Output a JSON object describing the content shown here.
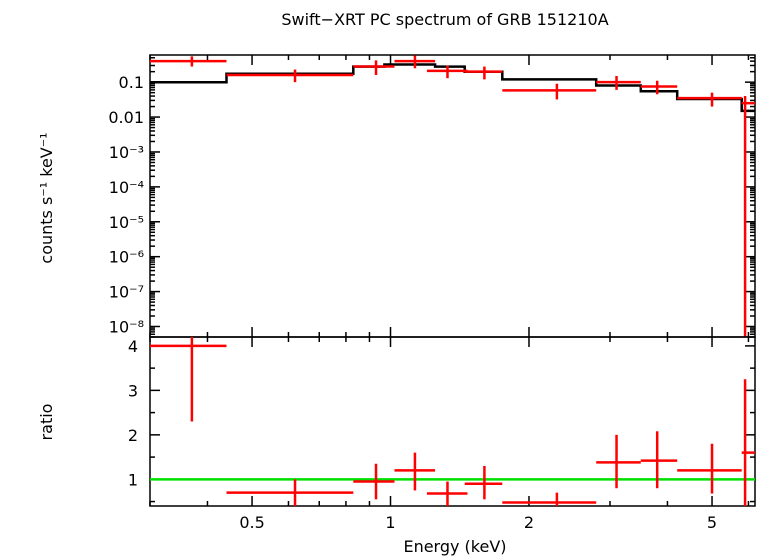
{
  "chart_data": {
    "type": "line",
    "title": "Swift−XRT PC spectrum of GRB 151210A",
    "xlabel": "Energy (keV)",
    "xscale": "log",
    "xlim": [
      0.3,
      6.2
    ],
    "x_ticks": [
      {
        "value": 0.5,
        "label": "0.5"
      },
      {
        "value": 1,
        "label": "1"
      },
      {
        "value": 2,
        "label": "2"
      },
      {
        "value": 5,
        "label": "5"
      }
    ],
    "colors": {
      "data": "#ff0000",
      "model": "#000000",
      "unity": "#00e000"
    },
    "top_panel": {
      "ylabel": "counts s⁻¹ keV⁻¹",
      "yscale": "log",
      "ylim": [
        5e-09,
        0.6
      ],
      "y_ticks": [
        {
          "value": 0.1,
          "label": "0.1"
        },
        {
          "value": 0.01,
          "label": "0.01"
        },
        {
          "value": 0.001,
          "label": "10⁻³"
        },
        {
          "value": 0.0001,
          "label": "10⁻⁴"
        },
        {
          "value": 1e-05,
          "label": "10⁻⁵"
        },
        {
          "value": 1e-06,
          "label": "10⁻⁶"
        },
        {
          "value": 1e-07,
          "label": "10⁻⁷"
        },
        {
          "value": 1e-08,
          "label": "10⁻⁸"
        }
      ],
      "model": [
        {
          "x_lo": 0.3,
          "x_hi": 0.44,
          "y": 0.1
        },
        {
          "x_lo": 0.44,
          "x_hi": 0.83,
          "y": 0.175
        },
        {
          "x_lo": 0.83,
          "x_hi": 0.97,
          "y": 0.28
        },
        {
          "x_lo": 0.97,
          "x_hi": 1.25,
          "y": 0.32
        },
        {
          "x_lo": 1.25,
          "x_hi": 1.45,
          "y": 0.28
        },
        {
          "x_lo": 1.45,
          "x_hi": 1.75,
          "y": 0.2
        },
        {
          "x_lo": 1.75,
          "x_hi": 2.8,
          "y": 0.12
        },
        {
          "x_lo": 2.8,
          "x_hi": 3.5,
          "y": 0.08
        },
        {
          "x_lo": 3.5,
          "x_hi": 4.2,
          "y": 0.055
        },
        {
          "x_lo": 4.2,
          "x_hi": 5.8,
          "y": 0.033
        },
        {
          "x_lo": 5.8,
          "x_hi": 6.2,
          "y": 0.015
        }
      ],
      "points": [
        {
          "x": 0.37,
          "x_lo": 0.3,
          "x_hi": 0.44,
          "y": 0.4,
          "y_lo": 0.28,
          "y_hi": 0.55
        },
        {
          "x": 0.62,
          "x_lo": 0.44,
          "x_hi": 0.83,
          "y": 0.16,
          "y_lo": 0.1,
          "y_hi": 0.23
        },
        {
          "x": 0.93,
          "x_lo": 0.83,
          "x_hi": 1.02,
          "y": 0.28,
          "y_lo": 0.16,
          "y_hi": 0.42
        },
        {
          "x": 1.13,
          "x_lo": 1.02,
          "x_hi": 1.25,
          "y": 0.4,
          "y_lo": 0.25,
          "y_hi": 0.58
        },
        {
          "x": 1.33,
          "x_lo": 1.2,
          "x_hi": 1.47,
          "y": 0.21,
          "y_lo": 0.13,
          "y_hi": 0.3
        },
        {
          "x": 1.6,
          "x_lo": 1.45,
          "x_hi": 1.75,
          "y": 0.2,
          "y_lo": 0.12,
          "y_hi": 0.28
        },
        {
          "x": 2.3,
          "x_lo": 1.75,
          "x_hi": 2.8,
          "y": 0.058,
          "y_lo": 0.032,
          "y_hi": 0.09
        },
        {
          "x": 3.1,
          "x_lo": 2.8,
          "x_hi": 3.5,
          "y": 0.1,
          "y_lo": 0.06,
          "y_hi": 0.15
        },
        {
          "x": 3.8,
          "x_lo": 3.5,
          "x_hi": 4.2,
          "y": 0.075,
          "y_lo": 0.045,
          "y_hi": 0.11
        },
        {
          "x": 5.0,
          "x_lo": 4.2,
          "x_hi": 5.8,
          "y": 0.035,
          "y_lo": 0.02,
          "y_hi": 0.05
        },
        {
          "x": 5.9,
          "x_lo": 5.8,
          "x_hi": 6.2,
          "y": 0.025,
          "y_lo": 5e-09,
          "y_hi": 0.04
        }
      ]
    },
    "bottom_panel": {
      "ylabel": "ratio",
      "yscale": "linear",
      "ylim": [
        0.4,
        4.2
      ],
      "y_ticks": [
        {
          "value": 1,
          "label": "1"
        },
        {
          "value": 2,
          "label": "2"
        },
        {
          "value": 3,
          "label": "3"
        },
        {
          "value": 4,
          "label": "4"
        }
      ],
      "unity_line": 1,
      "points": [
        {
          "x": 0.37,
          "x_lo": 0.3,
          "x_hi": 0.44,
          "y": 4.0,
          "y_lo": 2.3,
          "y_hi": 4.2
        },
        {
          "x": 0.62,
          "x_lo": 0.44,
          "x_hi": 0.83,
          "y": 0.7,
          "y_lo": 0.4,
          "y_hi": 1.0
        },
        {
          "x": 0.93,
          "x_lo": 0.83,
          "x_hi": 1.02,
          "y": 0.95,
          "y_lo": 0.55,
          "y_hi": 1.35
        },
        {
          "x": 1.13,
          "x_lo": 1.02,
          "x_hi": 1.25,
          "y": 1.2,
          "y_lo": 0.75,
          "y_hi": 1.6
        },
        {
          "x": 1.33,
          "x_lo": 1.2,
          "x_hi": 1.47,
          "y": 0.68,
          "y_lo": 0.4,
          "y_hi": 0.95
        },
        {
          "x": 1.6,
          "x_lo": 1.45,
          "x_hi": 1.75,
          "y": 0.9,
          "y_lo": 0.55,
          "y_hi": 1.3
        },
        {
          "x": 2.3,
          "x_lo": 1.75,
          "x_hi": 2.8,
          "y": 0.48,
          "y_lo": 0.4,
          "y_hi": 0.7
        },
        {
          "x": 3.1,
          "x_lo": 2.8,
          "x_hi": 3.5,
          "y": 1.38,
          "y_lo": 0.8,
          "y_hi": 2.0
        },
        {
          "x": 3.8,
          "x_lo": 3.5,
          "x_hi": 4.2,
          "y": 1.42,
          "y_lo": 0.8,
          "y_hi": 2.08
        },
        {
          "x": 5.0,
          "x_lo": 4.2,
          "x_hi": 5.8,
          "y": 1.2,
          "y_lo": 0.68,
          "y_hi": 1.8
        },
        {
          "x": 5.9,
          "x_lo": 5.8,
          "x_hi": 6.2,
          "y": 1.6,
          "y_lo": 0.4,
          "y_hi": 3.25
        }
      ]
    }
  }
}
